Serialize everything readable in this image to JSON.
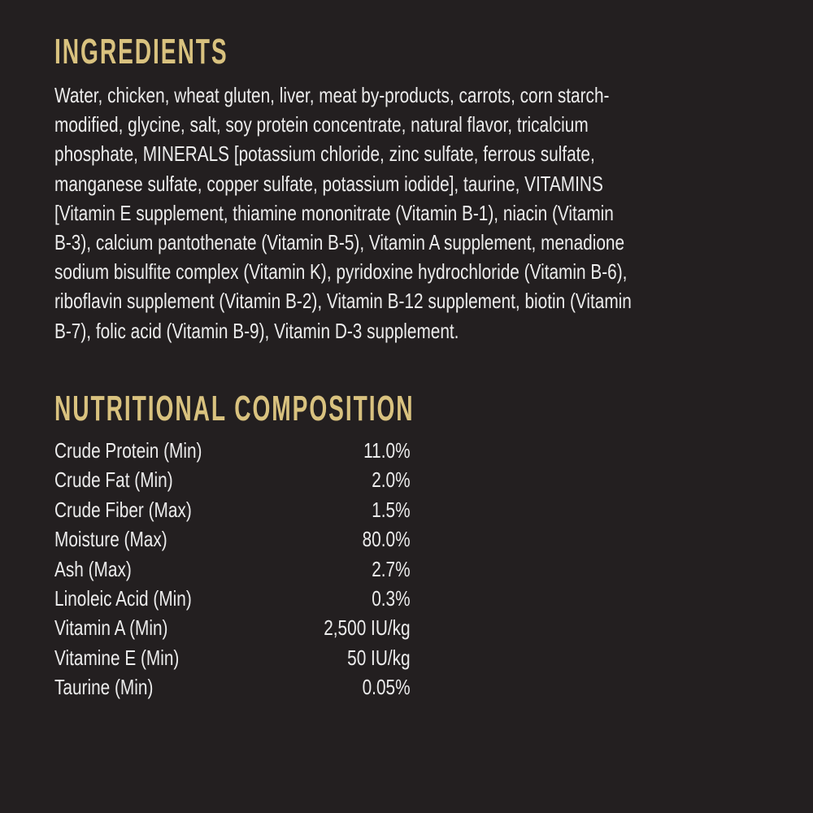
{
  "colors": {
    "background": "#231f20",
    "heading": "#d9c27f",
    "text": "#ececec"
  },
  "ingredients": {
    "title": "INGREDIENTS",
    "lines": [
      "Water, chicken, wheat gluten, liver, meat by-products, carrots, corn starch-",
      "modified, glycine, salt, soy protein concentrate, natural flavor, tricalcium",
      "phosphate, MINERALS [potassium chloride, zinc sulfate, ferrous sulfate,",
      "manganese sulfate, copper sulfate, potassium iodide], taurine, VITAMINS",
      "[Vitamin E supplement, thiamine mononitrate (Vitamin B-1), niacin (Vitamin",
      "B-3), calcium pantothenate (Vitamin B-5), Vitamin A supplement, menadione",
      "sodium bisulfite complex (Vitamin K), pyridoxine hydrochloride (Vitamin B-6),",
      "riboflavin supplement (Vitamin B-2), Vitamin B-12 supplement, biotin (Vitamin",
      "B-7), folic acid (Vitamin B-9), Vitamin D-3 supplement."
    ]
  },
  "nutrition": {
    "title": "NUTRITIONAL COMPOSITION",
    "rows": [
      {
        "label": "Crude Protein (Min)",
        "value": "11.0%"
      },
      {
        "label": "Crude Fat (Min)",
        "value": "2.0%"
      },
      {
        "label": "Crude Fiber (Max)",
        "value": "1.5%"
      },
      {
        "label": "Moisture (Max)",
        "value": "80.0%"
      },
      {
        "label": "Ash (Max)",
        "value": "2.7%"
      },
      {
        "label": "Linoleic Acid (Min)",
        "value": "0.3%"
      },
      {
        "label": "Vitamin A (Min)",
        "value": "2,500 IU/kg"
      },
      {
        "label": "Vitamine E (Min)",
        "value": "50 IU/kg"
      },
      {
        "label": "Taurine (Min)",
        "value": "0.05%"
      }
    ]
  }
}
